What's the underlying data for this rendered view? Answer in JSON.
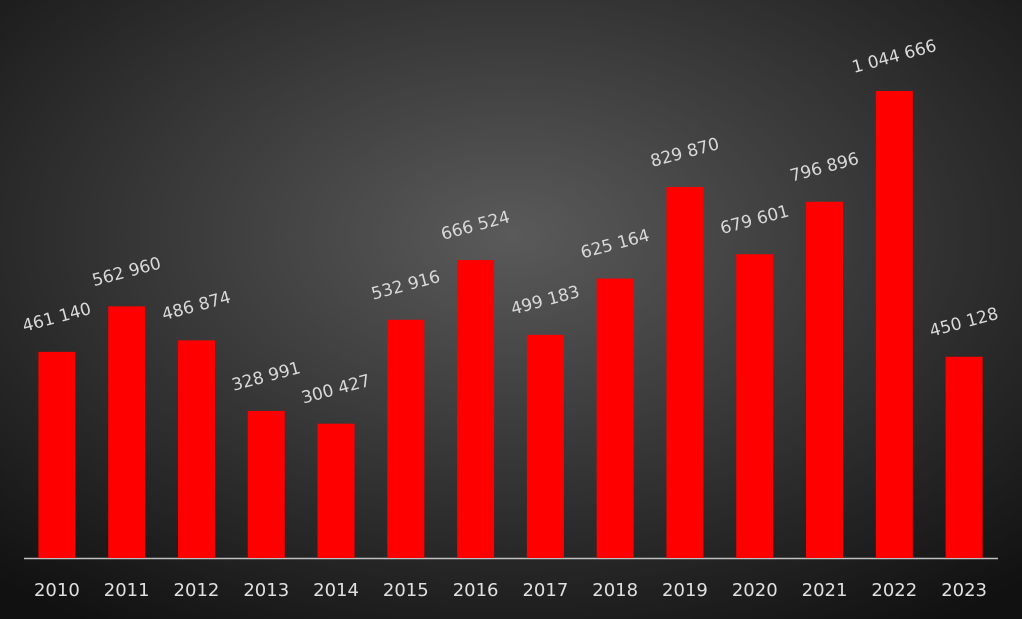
{
  "chart_data": {
    "type": "bar",
    "categories": [
      "2010",
      "2011",
      "2012",
      "2013",
      "2014",
      "2015",
      "2016",
      "2017",
      "2018",
      "2019",
      "2020",
      "2021",
      "2022",
      "2023"
    ],
    "values": [
      461140,
      562960,
      486874,
      328991,
      300427,
      532916,
      666524,
      499183,
      625164,
      829870,
      679601,
      796896,
      1044666,
      450128
    ],
    "value_labels": [
      "461 140",
      "562 960",
      "486 874",
      "328 991",
      "300 427",
      "532 916",
      "666 524",
      "499 183",
      "625 164",
      "829 870",
      "679 601",
      "796 896",
      "1 044 666",
      "450 128"
    ],
    "color": "#ff0000"
  }
}
